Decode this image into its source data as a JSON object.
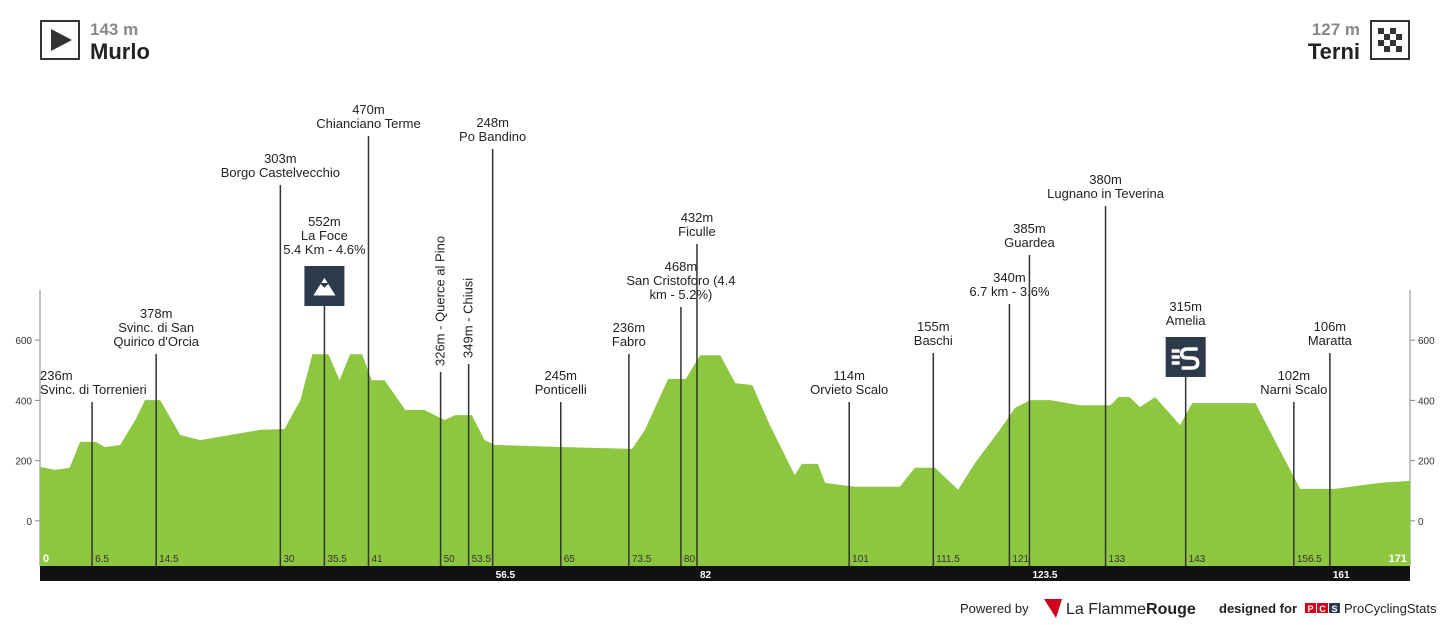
{
  "header": {
    "start_elevation": "143 m",
    "start_name": "Murlo",
    "finish_elevation": "127 m",
    "finish_name": "Terni"
  },
  "chart_data": {
    "type": "area",
    "x": [
      0,
      1.9,
      3.7,
      5,
      7,
      8.1,
      10,
      11.9,
      13.1,
      15,
      17.5,
      20,
      23.7,
      27.5,
      30.5,
      32.5,
      34,
      36,
      37.4,
      38.7,
      40.2,
      41.4,
      43,
      45.6,
      48,
      50.5,
      51.8,
      53.9,
      55.5,
      56.8,
      65.5,
      73.9,
      75.5,
      78.4,
      80.6,
      82.4,
      84.9,
      86.8,
      88.9,
      91.1,
      94.2,
      95.1,
      97.1,
      98,
      101.7,
      107.3,
      109.2,
      111.7,
      114.6,
      116.7,
      119.8,
      121.7,
      123.6,
      126.1,
      129.8,
      133.6,
      134.6,
      136,
      137.3,
      139.2,
      142.3,
      143.8,
      146,
      151.7,
      154.1,
      157.3,
      161.6,
      167.2,
      171
    ],
    "series": [
      {
        "color": "#8dc63f",
        "values": [
          179,
          169,
          176,
          262,
          262,
          245,
          252,
          335,
          401,
          401,
          285,
          268,
          285,
          302,
          305,
          401,
          553,
          553,
          467,
          553,
          553,
          467,
          467,
          368,
          368,
          335,
          351,
          351,
          268,
          252,
          245,
          239,
          302,
          471,
          471,
          550,
          550,
          457,
          451,
          318,
          152,
          189,
          189,
          126,
          113,
          113,
          176,
          176,
          103,
          192,
          302,
          375,
          401,
          401,
          384,
          384,
          411,
          411,
          378,
          411,
          318,
          391,
          391,
          391,
          268,
          106,
          106,
          126,
          133
        ]
      }
    ],
    "xlim": [
      0,
      171
    ],
    "ylim": [
      -150,
      750
    ],
    "yticks": [
      0,
      200,
      400,
      600
    ],
    "waypoints": [
      {
        "km": 6.5,
        "row": "top",
        "lines": [
          "236m",
          "Svinc. di Torrenieri"
        ]
      },
      {
        "km": 14.5,
        "row": "top",
        "lines": [
          "378m",
          "Svinc. di San",
          "Quirico d'Orcia"
        ]
      },
      {
        "km": 30,
        "row": "top",
        "lines": [
          "303m",
          "Borgo Castelvecchio"
        ]
      },
      {
        "km": 35.5,
        "row": "top",
        "lines": [
          "552m",
          "La Foce",
          "5.4 Km - 4.6%"
        ],
        "icon": "climb"
      },
      {
        "km": 41,
        "row": "top",
        "lines": [
          "470m",
          "Chianciano Terme"
        ]
      },
      {
        "km": 50,
        "row": "top",
        "lines": [
          "326m - Querce al Pino"
        ],
        "orientation": "vertical"
      },
      {
        "km": 53.5,
        "row": "top",
        "lines": [
          "349m - Chiusi"
        ],
        "orientation": "vertical"
      },
      {
        "km": 56.5,
        "row": "bar",
        "lines": [
          "248m",
          "Po Bandino"
        ]
      },
      {
        "km": 65,
        "row": "top",
        "lines": [
          "245m",
          "Ponticelli"
        ]
      },
      {
        "km": 73.5,
        "row": "top",
        "lines": [
          "236m",
          "Fabro"
        ]
      },
      {
        "km": 80,
        "row": "top",
        "lines": [
          "468m",
          "San Cristoforo (4.4",
          "km - 5.2%)"
        ]
      },
      {
        "km": 82,
        "row": "bar",
        "lines": [
          "432m",
          "Ficulle"
        ]
      },
      {
        "km": 101,
        "row": "top",
        "lines": [
          "114m",
          "Orvieto Scalo"
        ]
      },
      {
        "km": 111.5,
        "row": "top",
        "lines": [
          "155m",
          "Baschi"
        ]
      },
      {
        "km": 121,
        "row": "top",
        "lines": [
          "340m",
          "6.7 km - 3.6%"
        ]
      },
      {
        "km": 123.5,
        "row": "bar",
        "lines": [
          "385m",
          "Guardea"
        ]
      },
      {
        "km": 133,
        "row": "top",
        "lines": [
          "380m",
          "Lugnano in Teverina"
        ]
      },
      {
        "km": 143,
        "row": "top",
        "lines": [
          "315m",
          "Amelia"
        ],
        "icon": "sprint"
      },
      {
        "km": 156.5,
        "row": "top",
        "lines": [
          "102m",
          "Narni Scalo"
        ]
      },
      {
        "km": 161,
        "row": "bar",
        "lines": [
          "106m",
          "Maratta"
        ]
      }
    ]
  },
  "footer": {
    "powered_by": "Powered by",
    "brand_a": "La Flamme",
    "brand_b": "Rouge",
    "designed_for": "designed for",
    "pcs_letters": [
      "P",
      "C",
      "S"
    ],
    "pcs_name": "ProCyclingStats"
  }
}
